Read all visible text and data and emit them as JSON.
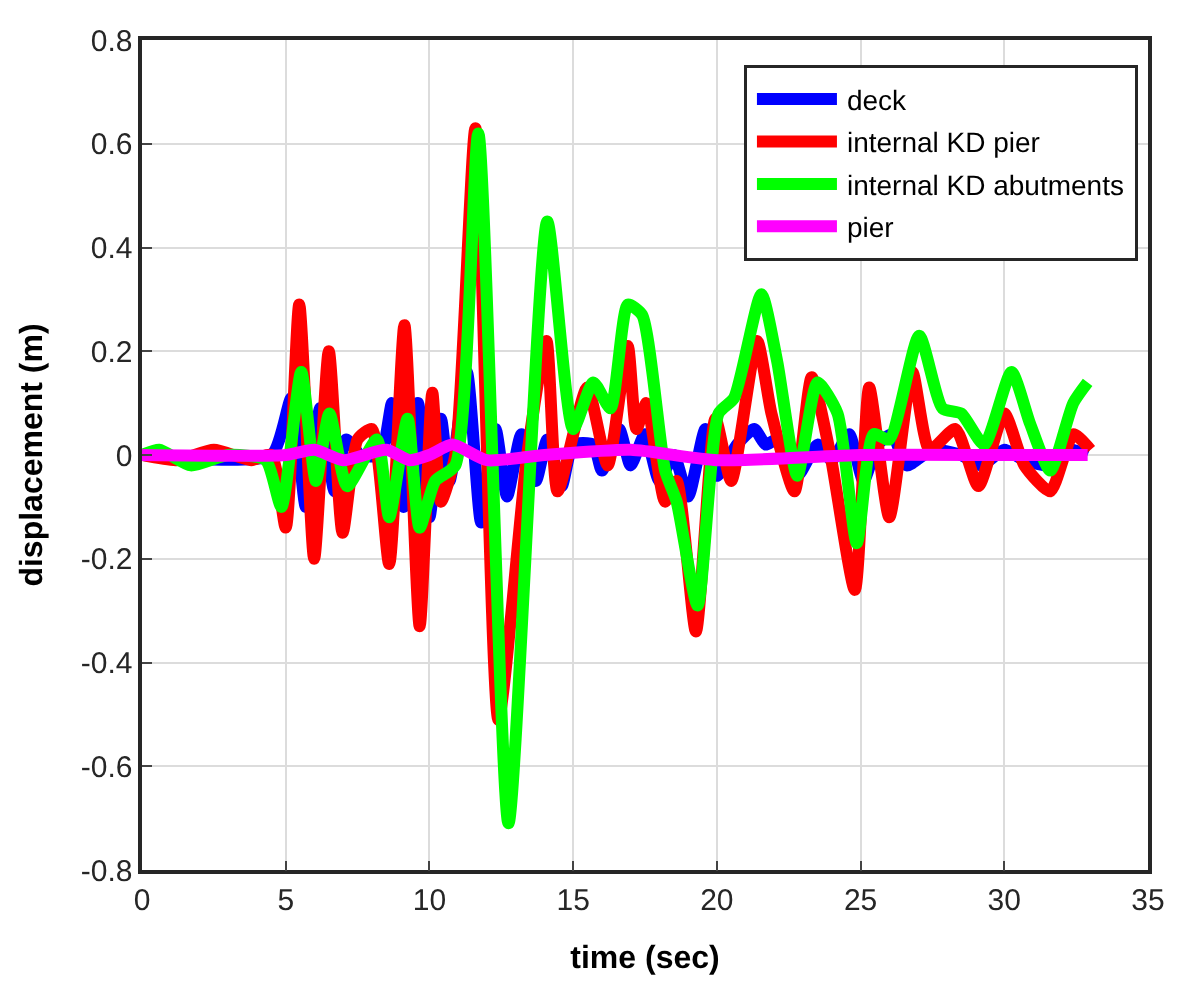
{
  "chart_data": {
    "type": "line",
    "xlabel": "time (sec)",
    "ylabel": "displacement (m)",
    "xlim": [
      0,
      35
    ],
    "xticks": [
      0,
      5,
      10,
      15,
      20,
      25,
      30,
      35
    ],
    "ylim": [
      -0.8,
      0.8
    ],
    "yticks": [
      -0.8,
      -0.6,
      -0.4,
      -0.2,
      0,
      0.2,
      0.4,
      0.6,
      0.8
    ],
    "grid": true,
    "legend": "top right",
    "line_style": "solid",
    "marker": "none",
    "series": [
      {
        "name": "deck",
        "color": "#0000ff",
        "x": [
          0,
          4.5,
          5.2,
          5.7,
          6.2,
          6.7,
          7.1,
          7.6,
          8.3,
          8.7,
          9.1,
          9.6,
          10.0,
          10.4,
          10.7,
          11.3,
          11.8,
          12.3,
          12.7,
          13.2,
          13.7,
          14.1,
          14.6,
          15.0,
          15.7,
          16.0,
          16.6,
          17.0,
          17.5,
          18.0,
          18.5,
          19.0,
          19.6,
          20.0,
          20.7,
          21.3,
          21.7,
          22.1,
          22.8,
          23.5,
          24.0,
          24.6,
          25.1,
          25.6,
          26.1,
          26.6,
          27.5,
          28.5,
          29.2,
          30.0,
          30.7,
          31.6,
          32.3,
          32.9
        ],
        "values": [
          0,
          0,
          0.11,
          -0.1,
          0.09,
          -0.07,
          0.03,
          0.0,
          0.0,
          0.1,
          -0.1,
          0.1,
          -0.12,
          0.07,
          -0.05,
          0.16,
          -0.13,
          0.05,
          -0.08,
          0.04,
          -0.05,
          0.03,
          -0.06,
          0.02,
          0.02,
          -0.03,
          0.05,
          -0.02,
          0.04,
          -0.05,
          0.0,
          -0.08,
          0.05,
          -0.04,
          0.02,
          0.05,
          0.02,
          0.03,
          -0.04,
          0.02,
          -0.01,
          0.04,
          -0.05,
          0.02,
          0.04,
          -0.02,
          0.01,
          0.0,
          -0.02,
          0.01,
          -0.01,
          -0.02,
          0.01,
          0.0
        ]
      },
      {
        "name": "internal KD pier",
        "color": "#ff0000",
        "x": [
          0,
          1.2,
          2.5,
          3.8,
          4.5,
          5.0,
          5.47,
          5.99,
          6.5,
          6.98,
          7.5,
          8.0,
          8.6,
          9.13,
          9.66,
          10.1,
          10.4,
          10.9,
          11.6,
          12.4,
          13.4,
          14.07,
          14.46,
          15.49,
          16.2,
          16.9,
          17.2,
          17.55,
          18.2,
          18.6,
          19.27,
          19.95,
          20.5,
          21.4,
          21.9,
          22.7,
          23.3,
          23.95,
          24.8,
          25.3,
          26.0,
          26.8,
          27.4,
          28.3,
          29.1,
          30.0,
          30.7,
          31.6,
          32.4,
          33.0
        ],
        "values": [
          0,
          -0.01,
          0.01,
          -0.01,
          0.0,
          -0.14,
          0.29,
          -0.2,
          0.2,
          -0.15,
          0.03,
          0.05,
          -0.21,
          0.25,
          -0.33,
          0.12,
          -0.09,
          0.0,
          0.63,
          -0.51,
          0.0,
          0.22,
          -0.07,
          0.13,
          -0.02,
          0.21,
          0.05,
          0.1,
          -0.09,
          -0.05,
          -0.34,
          0.07,
          -0.05,
          0.22,
          0.08,
          -0.07,
          0.15,
          0.0,
          -0.26,
          0.13,
          -0.12,
          0.16,
          0.01,
          0.05,
          -0.06,
          0.08,
          -0.02,
          -0.07,
          0.04,
          0.01
        ]
      },
      {
        "name": "internal KD abutments",
        "color": "#00ff00",
        "x": [
          0,
          0.6,
          1.7,
          3.0,
          4.3,
          4.85,
          5.54,
          6.05,
          6.52,
          7.14,
          8.17,
          8.6,
          9.24,
          9.66,
          10.2,
          10.9,
          11.7,
          12.75,
          14.1,
          15.0,
          15.7,
          16.3,
          16.9,
          17.4,
          18.2,
          18.6,
          19.33,
          20.06,
          20.6,
          21.55,
          22.1,
          22.8,
          23.5,
          24.2,
          24.87,
          25.45,
          26.0,
          27.04,
          27.85,
          28.5,
          29.3,
          30.25,
          30.9,
          31.6,
          32.4,
          32.9
        ],
        "values": [
          0,
          0.01,
          -0.02,
          0.0,
          -0.01,
          -0.1,
          0.16,
          -0.05,
          0.08,
          -0.06,
          0.03,
          -0.12,
          0.07,
          -0.14,
          -0.05,
          -0.02,
          0.62,
          -0.71,
          0.45,
          0.05,
          0.14,
          0.09,
          0.29,
          0.27,
          -0.03,
          -0.09,
          -0.29,
          0.08,
          0.11,
          0.31,
          0.18,
          -0.04,
          0.14,
          0.08,
          -0.17,
          0.04,
          0.03,
          0.23,
          0.09,
          0.08,
          0.02,
          0.16,
          0.06,
          -0.03,
          0.1,
          0.14
        ]
      },
      {
        "name": "pier",
        "color": "#ff00ff",
        "x": [
          0,
          5,
          6,
          7,
          8.5,
          9.3,
          10,
          10.8,
          12,
          14,
          17,
          20,
          25,
          30,
          32.9
        ],
        "values": [
          0,
          0,
          0.01,
          -0.01,
          0.01,
          -0.01,
          0.0,
          0.02,
          -0.01,
          0,
          0.01,
          -0.01,
          0,
          0,
          0
        ]
      }
    ]
  }
}
